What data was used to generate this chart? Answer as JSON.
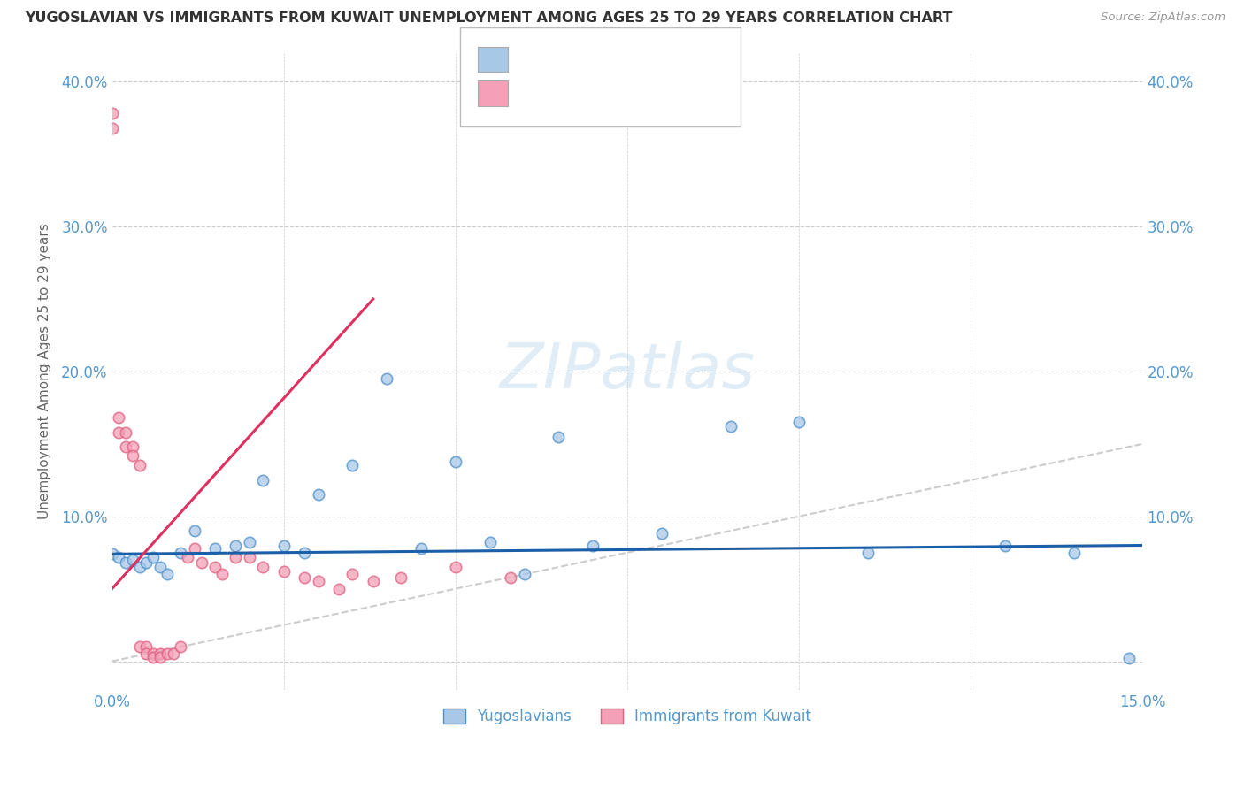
{
  "title": "YUGOSLAVIAN VS IMMIGRANTS FROM KUWAIT UNEMPLOYMENT AMONG AGES 25 TO 29 YEARS CORRELATION CHART",
  "source": "Source: ZipAtlas.com",
  "ylabel": "Unemployment Among Ages 25 to 29 years",
  "xlim": [
    0.0,
    0.15
  ],
  "ylim": [
    -0.02,
    0.42
  ],
  "xtick_pos": [
    0.0,
    0.025,
    0.05,
    0.075,
    0.1,
    0.125,
    0.15
  ],
  "xtick_labels": [
    "0.0%",
    "",
    "",
    "",
    "",
    "",
    "15.0%"
  ],
  "ytick_pos": [
    0.0,
    0.1,
    0.2,
    0.3,
    0.4
  ],
  "ytick_labels": [
    "",
    "10.0%",
    "20.0%",
    "30.0%",
    "40.0%"
  ],
  "blue_color": "#a8c8e8",
  "pink_color": "#f4a0b8",
  "blue_edge_color": "#5090c8",
  "pink_edge_color": "#e06080",
  "blue_line_color": "#1a5fa8",
  "pink_line_color": "#e03060",
  "diagonal_color": "#cccccc",
  "background_color": "#ffffff",
  "grid_color": "#cccccc",
  "text_color": "#333333",
  "axis_label_color": "#5599cc",
  "blue_scatter_x": [
    0.0,
    0.001,
    0.002,
    0.003,
    0.004,
    0.005,
    0.006,
    0.007,
    0.008,
    0.01,
    0.012,
    0.015,
    0.018,
    0.02,
    0.022,
    0.025,
    0.028,
    0.03,
    0.035,
    0.04,
    0.045,
    0.05,
    0.055,
    0.06,
    0.065,
    0.07,
    0.08,
    0.09,
    0.1,
    0.11,
    0.13,
    0.14,
    0.148
  ],
  "blue_scatter_y": [
    0.074,
    0.072,
    0.068,
    0.07,
    0.065,
    0.068,
    0.072,
    0.065,
    0.06,
    0.075,
    0.09,
    0.078,
    0.08,
    0.082,
    0.125,
    0.08,
    0.075,
    0.115,
    0.135,
    0.195,
    0.078,
    0.138,
    0.082,
    0.06,
    0.155,
    0.08,
    0.088,
    0.162,
    0.165,
    0.075,
    0.08,
    0.075,
    0.002
  ],
  "pink_scatter_x": [
    0.0,
    0.0,
    0.001,
    0.001,
    0.002,
    0.002,
    0.003,
    0.003,
    0.004,
    0.004,
    0.005,
    0.005,
    0.006,
    0.006,
    0.007,
    0.007,
    0.008,
    0.009,
    0.01,
    0.011,
    0.012,
    0.013,
    0.015,
    0.016,
    0.018,
    0.02,
    0.022,
    0.025,
    0.028,
    0.03,
    0.033,
    0.035,
    0.038,
    0.042,
    0.05,
    0.058
  ],
  "pink_scatter_y": [
    0.378,
    0.368,
    0.168,
    0.158,
    0.158,
    0.148,
    0.148,
    0.142,
    0.135,
    0.01,
    0.01,
    0.005,
    0.005,
    0.003,
    0.005,
    0.003,
    0.005,
    0.005,
    0.01,
    0.072,
    0.078,
    0.068,
    0.065,
    0.06,
    0.072,
    0.072,
    0.065,
    0.062,
    0.058,
    0.055,
    0.05,
    0.06,
    0.055,
    0.058,
    0.065,
    0.058
  ],
  "blue_trend_x": [
    0.0,
    0.15
  ],
  "blue_trend_y": [
    0.074,
    0.08
  ],
  "pink_trend_x": [
    0.0,
    0.038
  ],
  "pink_trend_y": [
    0.05,
    0.25
  ],
  "watermark_text": "ZIPatlas",
  "legend_labels": [
    "Yugoslavians",
    "Immigrants from Kuwait"
  ]
}
